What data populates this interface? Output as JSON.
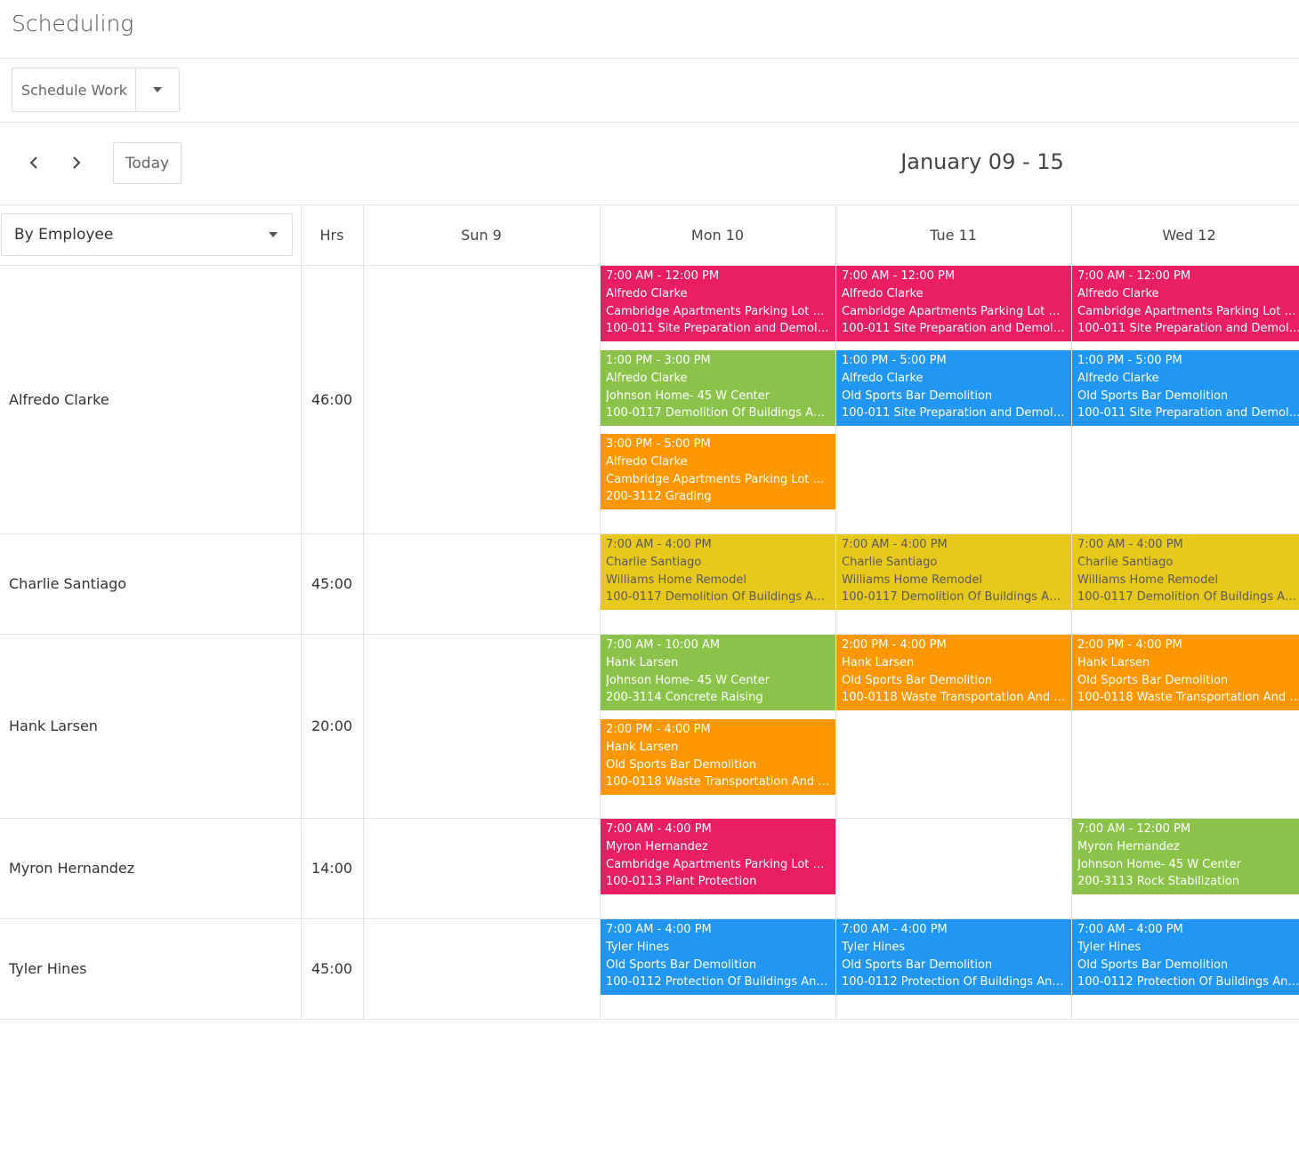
{
  "header": {
    "title": "Scheduling",
    "action_button": "Schedule Work"
  },
  "toolbar": {
    "today": "Today",
    "range": "January 09 - 15"
  },
  "grid": {
    "group_by": "By Employee",
    "hours_header": "Hrs",
    "days": [
      "Sun 9",
      "Mon 10",
      "Tue 11",
      "Wed 12"
    ],
    "rows": [
      {
        "employee": "Alfredo Clarke",
        "hours": "46:00",
        "cells": [
          [],
          [
            {
              "time": "7:00 AM - 12:00 PM",
              "employee": "Alfredo Clarke",
              "project": "Cambridge Apartments Parking Lot Resu...",
              "task": "100-011 Site Preparation and Demolition",
              "color": "#ea1e63"
            },
            {
              "time": "1:00 PM - 3:00 PM",
              "employee": "Alfredo Clarke",
              "project": "Johnson Home- 45 W Center",
              "task": "100-0117 Demolition Of Buildings And F...",
              "color": "#8bc34a"
            },
            {
              "time": "3:00 PM - 5:00 PM",
              "employee": "Alfredo Clarke",
              "project": "Cambridge Apartments Parking Lot Resu...",
              "task": "200-3112 Grading",
              "color": "#ff9800"
            }
          ],
          [
            {
              "time": "7:00 AM - 12:00 PM",
              "employee": "Alfredo Clarke",
              "project": "Cambridge Apartments Parking Lot Resu...",
              "task": "100-011 Site Preparation and Demolition",
              "color": "#ea1e63"
            },
            {
              "time": "1:00 PM - 5:00 PM",
              "employee": "Alfredo Clarke",
              "project": "Old Sports Bar Demolition",
              "task": "100-011 Site Preparation and Demolition",
              "color": "#2196f3"
            }
          ],
          [
            {
              "time": "7:00 AM - 12:00 PM",
              "employee": "Alfredo Clarke",
              "project": "Cambridge Apartments Parking Lot Resu...",
              "task": "100-011 Site Preparation and Demolition",
              "color": "#ea1e63"
            },
            {
              "time": "1:00 PM - 5:00 PM",
              "employee": "Alfredo Clarke",
              "project": "Old Sports Bar Demolition",
              "task": "100-011 Site Preparation and Demolition",
              "color": "#2196f3"
            }
          ]
        ]
      },
      {
        "employee": "Charlie Santiago",
        "hours": "45:00",
        "cells": [
          [],
          [
            {
              "time": "7:00 AM - 4:00 PM",
              "employee": "Charlie Santiago",
              "project": "Williams Home Remodel",
              "task": "100-0117 Demolition Of Buildings And F...",
              "color": "#e8c81a",
              "text_color": "#5a5a5a"
            }
          ],
          [
            {
              "time": "7:00 AM - 4:00 PM",
              "employee": "Charlie Santiago",
              "project": "Williams Home Remodel",
              "task": "100-0117 Demolition Of Buildings And F...",
              "color": "#e8c81a",
              "text_color": "#5a5a5a"
            }
          ],
          [
            {
              "time": "7:00 AM - 4:00 PM",
              "employee": "Charlie Santiago",
              "project": "Williams Home Remodel",
              "task": "100-0117 Demolition Of Buildings And F...",
              "color": "#e8c81a",
              "text_color": "#5a5a5a"
            }
          ]
        ]
      },
      {
        "employee": "Hank Larsen",
        "hours": "20:00",
        "cells": [
          [],
          [
            {
              "time": "7:00 AM - 10:00 AM",
              "employee": "Hank Larsen",
              "project": "Johnson Home- 45 W Center",
              "task": "200-3114 Concrete Raising",
              "color": "#8bc34a"
            },
            {
              "time": "2:00 PM - 4:00 PM",
              "employee": "Hank Larsen",
              "project": "Old Sports Bar Demolition",
              "task": "100-0118 Waste Transportation And Dis...",
              "color": "#ff9800"
            }
          ],
          [
            {
              "time": "2:00 PM - 4:00 PM",
              "employee": "Hank Larsen",
              "project": "Old Sports Bar Demolition",
              "task": "100-0118 Waste Transportation And Dis...",
              "color": "#ff9800"
            }
          ],
          [
            {
              "time": "2:00 PM - 4:00 PM",
              "employee": "Hank Larsen",
              "project": "Old Sports Bar Demolition",
              "task": "100-0118 Waste Transportation And Dis...",
              "color": "#ff9800"
            }
          ]
        ]
      },
      {
        "employee": "Myron Hernandez",
        "hours": "14:00",
        "cells": [
          [],
          [
            {
              "time": "7:00 AM - 4:00 PM",
              "employee": "Myron Hernandez",
              "project": "Cambridge Apartments Parking Lot Resu...",
              "task": "100-0113 Plant Protection",
              "color": "#ea1e63"
            }
          ],
          [],
          [
            {
              "time": "7:00 AM - 12:00 PM",
              "employee": "Myron Hernandez",
              "project": "Johnson Home- 45 W Center",
              "task": "200-3113 Rock Stabilization",
              "color": "#8bc34a"
            }
          ]
        ]
      },
      {
        "employee": "Tyler Hines",
        "hours": "45:00",
        "cells": [
          [],
          [
            {
              "time": "7:00 AM - 4:00 PM",
              "employee": "Tyler Hines",
              "project": "Old Sports Bar Demolition",
              "task": "100-0112 Protection Of Buildings And F...",
              "color": "#2196f3"
            }
          ],
          [
            {
              "time": "7:00 AM - 4:00 PM",
              "employee": "Tyler Hines",
              "project": "Old Sports Bar Demolition",
              "task": "100-0112 Protection Of Buildings And F...",
              "color": "#2196f3"
            }
          ],
          [
            {
              "time": "7:00 AM - 4:00 PM",
              "employee": "Tyler Hines",
              "project": "Old Sports Bar Demolition",
              "task": "100-0112 Protection Of Buildings And F...",
              "color": "#2196f3"
            }
          ]
        ]
      }
    ]
  }
}
